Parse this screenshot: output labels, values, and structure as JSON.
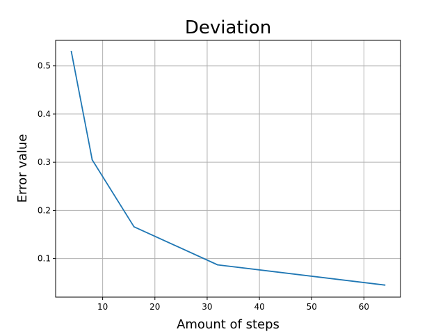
{
  "chart_data": {
    "type": "line",
    "title": "Deviation",
    "xlabel": "Amount of steps",
    "ylabel": "Error value",
    "xlim": [
      1,
      67
    ],
    "ylim": [
      0.02,
      0.553
    ],
    "grid": true,
    "xticks": [
      10,
      20,
      30,
      40,
      50,
      60
    ],
    "yticks": [
      0.1,
      0.2,
      0.3,
      0.4,
      0.5
    ],
    "series": [
      {
        "color": "#1f77b4",
        "x": [
          4,
          8,
          16,
          32,
          64
        ],
        "y": [
          0.53,
          0.305,
          0.166,
          0.087,
          0.045
        ]
      }
    ]
  }
}
